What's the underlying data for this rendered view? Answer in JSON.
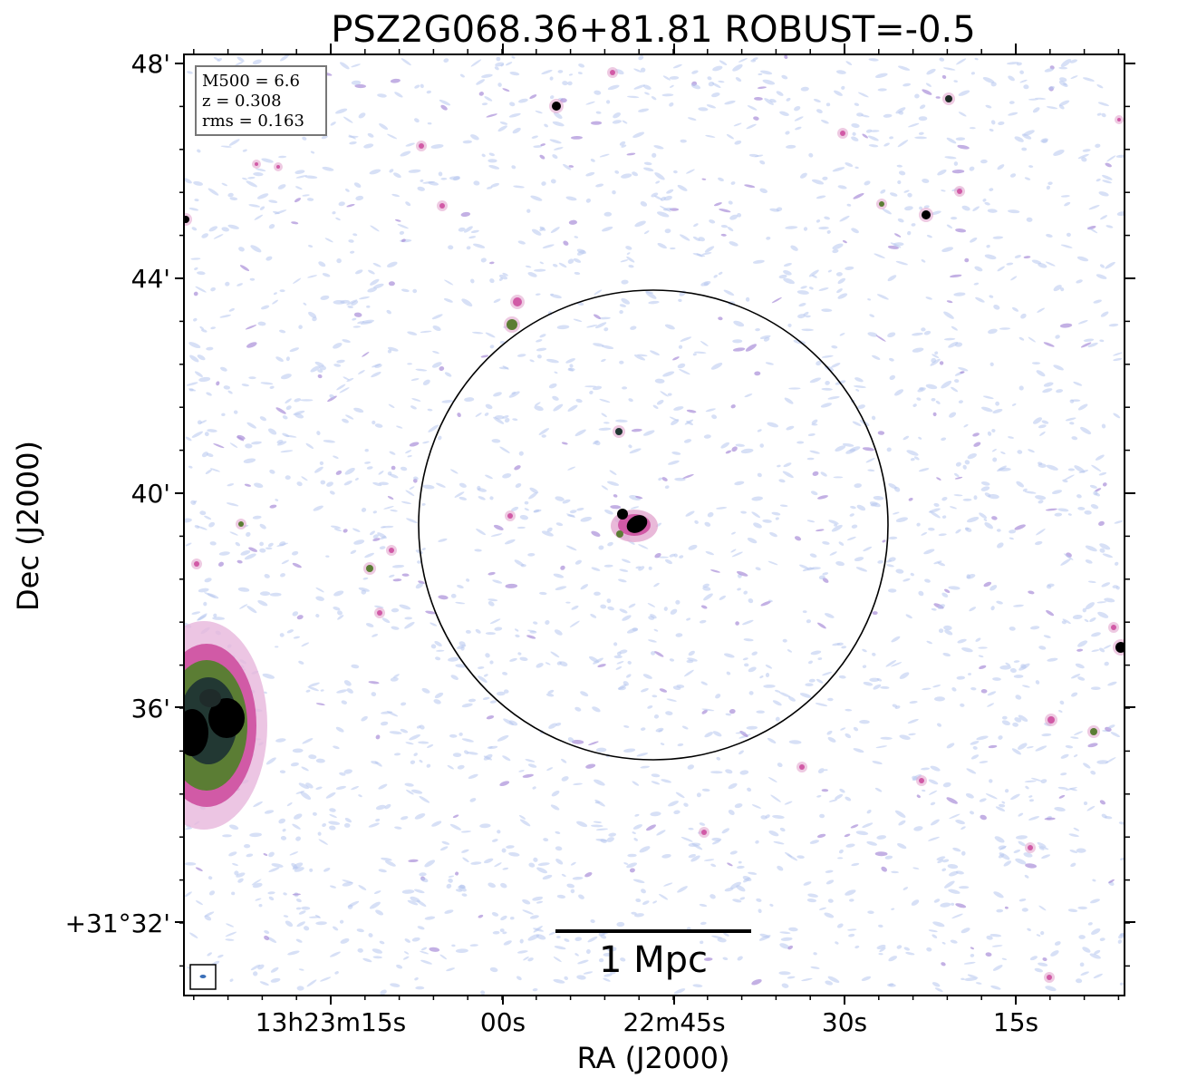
{
  "title": "PSZ2G068.36+81.81 ROBUST=-0.5",
  "info_box": {
    "lines": [
      "M500 = 6.6",
      "z = 0.308",
      "rms = 0.163"
    ]
  },
  "axes": {
    "xlabel": "RA (J2000)",
    "ylabel": "Dec (J2000)",
    "xticks": [
      "13h23m15s",
      "00s",
      "22m45s",
      "30s",
      "15s"
    ],
    "yticks": [
      "48'",
      "44'",
      "40'",
      "36'",
      "+31°32'"
    ]
  },
  "scale_bar": {
    "label": "1 Mpc"
  },
  "colors": {
    "background_noise_light": "#b7c7ef",
    "noise_purple": "#a98fd8",
    "emission_pink": "#d15aa6",
    "emission_green": "#5b7d34",
    "emission_black": "#000000",
    "circle": "#000000"
  },
  "icons": {
    "beam": "beam-ellipse-icon"
  }
}
